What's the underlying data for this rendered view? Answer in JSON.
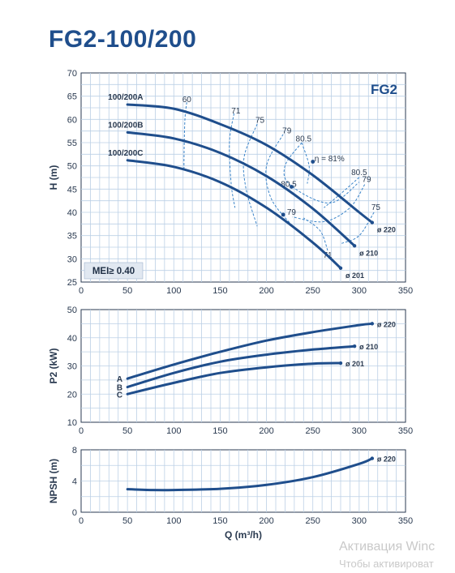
{
  "title": "FG2-100/200",
  "colors": {
    "curve": "#1f4e8c",
    "iso": "#3a84c9",
    "grid": "#bcd0e6",
    "badge_bg": "#e1e8f1"
  },
  "watermark": {
    "line1": "Активация Winc",
    "line2": "Чтобы активироват"
  },
  "chart_data": [
    {
      "type": "line",
      "badge": "FG2",
      "mei_label": "MEI≥ 0.40",
      "ylabel": "H (m)",
      "xlabel": "",
      "xlim": [
        0,
        350
      ],
      "ylim": [
        25,
        70
      ],
      "xticks": [
        0,
        50,
        100,
        150,
        200,
        250,
        300,
        350
      ],
      "yticks": [
        25,
        30,
        35,
        40,
        45,
        50,
        55,
        60,
        65,
        70
      ],
      "grid": true,
      "series": [
        {
          "name": "100/200A",
          "diameter": "ø 220",
          "x": [
            50,
            100,
            150,
            200,
            250,
            300,
            314
          ],
          "y": [
            63.2,
            62.3,
            59.0,
            54.5,
            48.0,
            40.0,
            37.8
          ]
        },
        {
          "name": "100/200B",
          "diameter": "ø 210",
          "x": [
            50,
            100,
            150,
            200,
            250,
            295
          ],
          "y": [
            57.2,
            55.9,
            52.8,
            47.8,
            40.8,
            32.8
          ]
        },
        {
          "name": "100/200C",
          "diameter": "ø 201",
          "x": [
            50,
            100,
            150,
            200,
            250,
            280
          ],
          "y": [
            51.2,
            49.8,
            46.5,
            41.0,
            33.5,
            28.0
          ]
        }
      ],
      "efficiency_labels": [
        {
          "text": "60",
          "x": 114,
          "y": 63.7
        },
        {
          "text": "71",
          "x": 167,
          "y": 61.3
        },
        {
          "text": "75",
          "x": 193,
          "y": 59.3
        },
        {
          "text": "79",
          "x": 222,
          "y": 57.0
        },
        {
          "text": "80.5",
          "x": 240,
          "y": 55.3
        },
        {
          "text": "η = 81%",
          "x": 268,
          "y": 51.0
        },
        {
          "text": "80.5",
          "x": 300,
          "y": 48.0
        },
        {
          "text": "79",
          "x": 308,
          "y": 46.5
        },
        {
          "text": "75",
          "x": 318,
          "y": 40.5
        },
        {
          "text": "80.5",
          "x": 224,
          "y": 45.5
        },
        {
          "text": "79",
          "x": 227,
          "y": 39.5
        },
        {
          "text": "71",
          "x": 266,
          "y": 30.2
        }
      ]
    },
    {
      "type": "line",
      "ylabel": "P2 (kW)",
      "xlabel": "",
      "xlim": [
        0,
        350
      ],
      "ylim": [
        10,
        50
      ],
      "xticks": [
        0,
        50,
        100,
        150,
        200,
        250,
        300,
        350
      ],
      "yticks": [
        10,
        20,
        30,
        40,
        50
      ],
      "grid": true,
      "series": [
        {
          "name": "A",
          "diameter": "ø 220",
          "x": [
            50,
            100,
            150,
            200,
            250,
            300,
            314
          ],
          "y": [
            25.5,
            30.5,
            35.0,
            39.0,
            42.0,
            44.5,
            45.0
          ]
        },
        {
          "name": "B",
          "diameter": "ø 210",
          "x": [
            50,
            100,
            150,
            200,
            250,
            295
          ],
          "y": [
            22.5,
            27.5,
            31.5,
            34.0,
            35.8,
            37.0
          ]
        },
        {
          "name": "C",
          "diameter": "ø 201",
          "x": [
            50,
            100,
            150,
            200,
            250,
            280
          ],
          "y": [
            20.0,
            24.0,
            27.5,
            29.5,
            30.8,
            31.0
          ]
        }
      ]
    },
    {
      "type": "line",
      "ylabel": "NPSH (m)",
      "xlabel": "Q (m³/h)",
      "xlim": [
        0,
        350
      ],
      "ylim": [
        0,
        8
      ],
      "xticks": [
        0,
        50,
        100,
        150,
        200,
        250,
        300,
        350
      ],
      "yticks": [
        0,
        4,
        8
      ],
      "grid": true,
      "series": [
        {
          "name": "",
          "diameter": "ø 220",
          "x": [
            50,
            75,
            100,
            150,
            200,
            250,
            300,
            314
          ],
          "y": [
            2.95,
            2.85,
            2.85,
            3.0,
            3.5,
            4.5,
            6.2,
            6.9
          ]
        }
      ]
    }
  ]
}
